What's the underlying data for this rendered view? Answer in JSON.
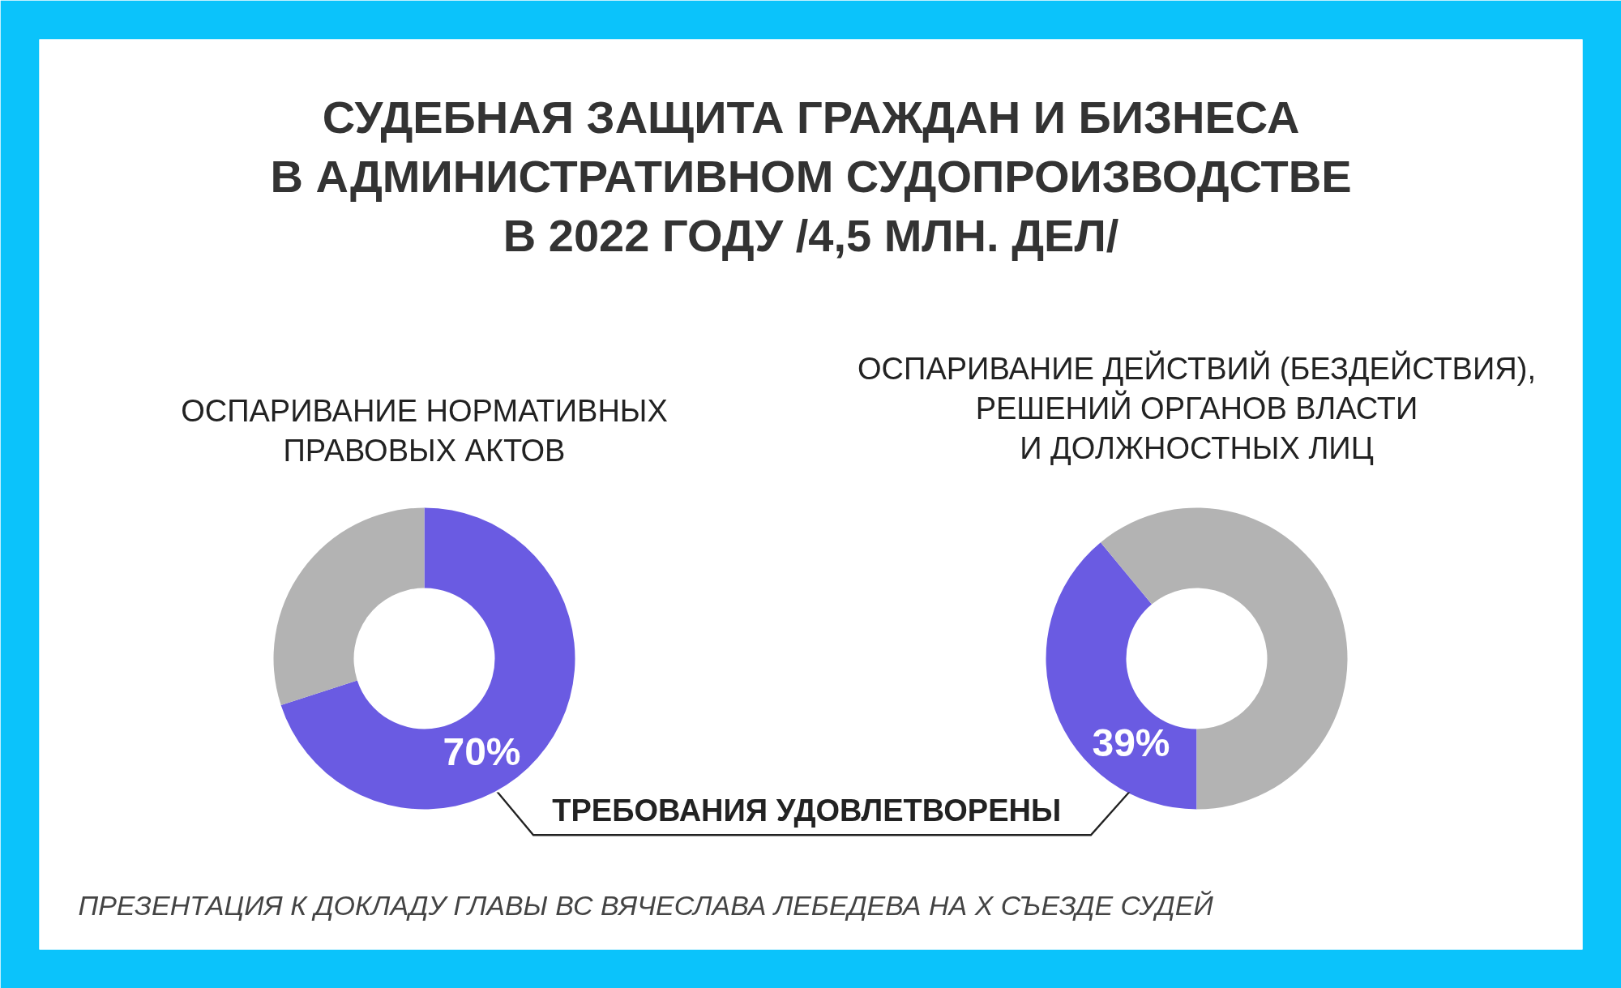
{
  "chart_data": [
    {
      "type": "donut",
      "title": "ОСПАРИВАНИЕ НОРМАТИВНЫХ\nПРАВОВЫХ АКТОВ",
      "categories": [
        null,
        null
      ],
      "values": [
        70,
        30
      ],
      "colors": [
        "#6a5be2",
        "#b3b3b3"
      ],
      "value_labels": [
        "70%",
        null
      ],
      "annotations": [
        "СУДЕБНАЯ ЗАЩИТА ГРАЖДАН И БИЗНЕСА\nВ АДМИНИСТРАТИВНОМ СУДОПРОИЗВОДСТВЕ\nВ 2022 ГОДУ /4,5 МЛН. ДЕЛ/",
        "ТРЕБОВАНИЯ  УДОВЛЕТВОРЕНЫ",
        "ПРЕЗЕНТАЦИЯ К ДОКЛАДУ ГЛАВЫ ВС ВЯЧЕСЛАВА ЛЕБЕДЕВА НА X СЪЕЗДЕ СУДЕЙ"
      ]
    },
    {
      "type": "donut",
      "title": "ОСПАРИВАНИЕ ДЕЙСТВИЙ (БЕЗДЕЙСТВИЯ),\nРЕШЕНИЙ ОРГАНОВ ВЛАСТИ\nИ ДОЛЖНОСТНЫХ ЛИЦ",
      "categories": [
        null,
        null
      ],
      "values": [
        39,
        61
      ],
      "colors": [
        "#6a5be2",
        "#b3b3b3"
      ],
      "value_labels": [
        "39%",
        null
      ]
    }
  ]
}
